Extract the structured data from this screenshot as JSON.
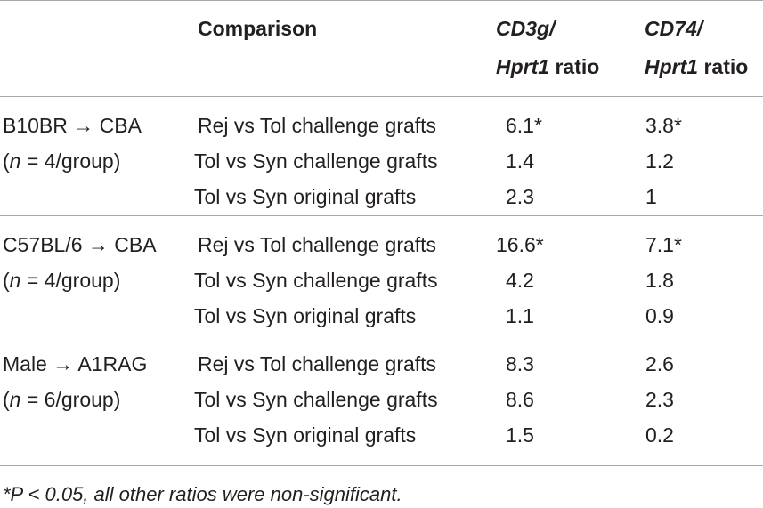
{
  "table": {
    "headers": {
      "comparison": "Comparison",
      "cd3g": {
        "gene": "CD3g/",
        "ref_gene": "Hprt1",
        "suffix": " ratio"
      },
      "cd74": {
        "gene": "CD74/",
        "ref_gene": "Hprt1",
        "suffix": " ratio"
      }
    },
    "groups": [
      {
        "name": "B10BR → CBA",
        "n_prefix": "(",
        "n_var": "n",
        "n_rest": " = 4/group)",
        "rows": [
          {
            "comparison": "Rej vs Tol challenge grafts",
            "cd3g": "6.1*",
            "cd74": "3.8*"
          },
          {
            "comparison": "Tol vs Syn challenge grafts",
            "cd3g": "1.4",
            "cd74": "1.2"
          },
          {
            "comparison": "Tol vs Syn original grafts",
            "cd3g": "2.3",
            "cd74": "1"
          }
        ]
      },
      {
        "name": "C57BL/6 → CBA",
        "n_prefix": "(",
        "n_var": "n",
        "n_rest": " = 4/group)",
        "rows": [
          {
            "comparison": "Rej vs Tol challenge grafts",
            "cd3g": "16.6*",
            "cd74": "7.1*"
          },
          {
            "comparison": "Tol vs Syn challenge grafts",
            "cd3g": "4.2",
            "cd74": "1.8"
          },
          {
            "comparison": "Tol vs Syn original grafts",
            "cd3g": "1.1",
            "cd74": "0.9"
          }
        ]
      },
      {
        "name": "Male → A1RAG",
        "n_prefix": "(",
        "n_var": "n",
        "n_rest": " = 6/group)",
        "rows": [
          {
            "comparison": "Rej vs Tol challenge grafts",
            "cd3g": "8.3",
            "cd74": "2.6"
          },
          {
            "comparison": "Tol vs Syn challenge grafts",
            "cd3g": "8.6",
            "cd74": "2.3"
          },
          {
            "comparison": "Tol vs Syn original grafts",
            "cd3g": "1.5",
            "cd74": "0.2"
          }
        ]
      }
    ],
    "footnote": "*P < 0.05, all other ratios were non-significant."
  }
}
